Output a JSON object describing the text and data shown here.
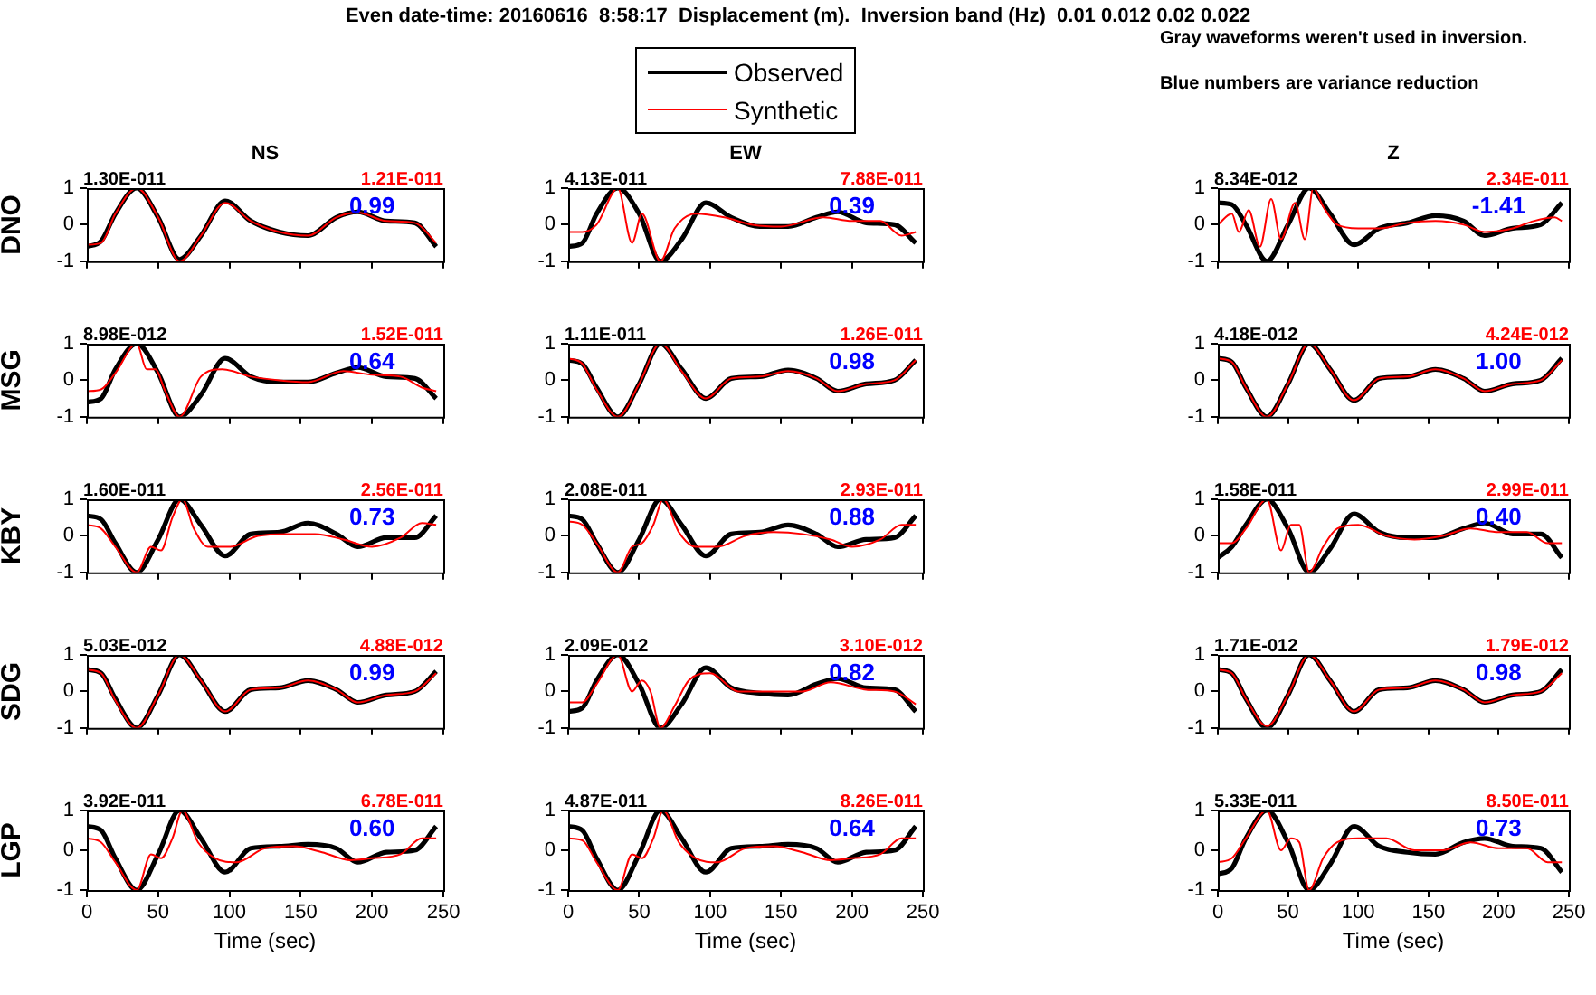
{
  "chart_data": [
    {
      "type": "other",
      "title": "Even date-time: 20160616  8:58:17  Displacement (m).  Inversion band (Hz)  0.01 0.012 0.02 0.022",
      "annotations": [
        "Gray waveforms weren't used in inversion.",
        "Blue numbers are variance reduction"
      ]
    },
    {
      "type": "line",
      "title": "NS",
      "ylabel": "DNO",
      "x": [
        0,
        10,
        20,
        35,
        50,
        65,
        80,
        97,
        115,
        135,
        155,
        175,
        190,
        210,
        230,
        245
      ],
      "xlim": [
        0,
        250
      ],
      "xticks": [
        0,
        50,
        100,
        150,
        200,
        250
      ],
      "ylim": [
        -1,
        1
      ],
      "yticks": [
        -1,
        0,
        1
      ],
      "tick_labels": "y",
      "annotations": [
        "1.30E-011",
        "1.21E-011",
        "0.99"
      ],
      "series": [
        {
          "color": "#000000",
          "values": [
            -0.6,
            -0.45,
            0.3,
            1,
            0.2,
            -0.95,
            -0.3,
            0.65,
            0.1,
            -0.2,
            -0.3,
            0.2,
            0.35,
            0.1,
            0.05,
            -0.6
          ]
        },
        {
          "color": "#ff0000",
          "values": [
            -0.55,
            -0.5,
            0.3,
            1,
            0.2,
            -1,
            -0.3,
            0.6,
            0.1,
            -0.2,
            -0.3,
            0.2,
            0.33,
            0.1,
            0.05,
            -0.5
          ]
        }
      ]
    },
    {
      "type": "line",
      "title": "EW",
      "legend": "top",
      "x": [
        0,
        10,
        20,
        35,
        50,
        65,
        80,
        97,
        115,
        135,
        155,
        175,
        190,
        210,
        230,
        245
      ],
      "xlim": [
        0,
        250
      ],
      "xticks": [
        0,
        50,
        100,
        150,
        200,
        250
      ],
      "ylim": [
        -1,
        1
      ],
      "yticks": [
        -1,
        0,
        1
      ],
      "tick_labels": "y",
      "annotations": [
        "4.13E-011",
        "7.88E-011",
        "0.39"
      ],
      "series": [
        {
          "name": "Observed",
          "color": "#000000",
          "values": [
            -0.6,
            -0.5,
            0.3,
            1,
            0.3,
            -1,
            -0.4,
            0.6,
            0.2,
            -0.05,
            -0.05,
            0.2,
            0.35,
            0.05,
            0,
            -0.5
          ]
        },
        {
          "name": "Synthetic",
          "color": "#ff0000",
          "x": [
            0,
            10,
            20,
            35,
            45,
            52,
            65,
            75,
            90,
            110,
            130,
            150,
            180,
            200,
            220,
            235,
            245
          ],
          "values": [
            -0.2,
            -0.2,
            0,
            1,
            -0.5,
            0.3,
            -1,
            -0.1,
            0.3,
            0.2,
            0,
            -0.05,
            0.2,
            0.1,
            0.1,
            -0.3,
            -0.2
          ]
        }
      ]
    },
    {
      "type": "line",
      "title": "Z",
      "x": [
        0,
        10,
        20,
        35,
        50,
        65,
        80,
        97,
        115,
        135,
        155,
        175,
        190,
        210,
        230,
        245
      ],
      "xlim": [
        0,
        250
      ],
      "xticks": [
        0,
        50,
        100,
        150,
        200,
        250
      ],
      "ylim": [
        -1,
        1
      ],
      "yticks": [
        -1,
        0,
        1
      ],
      "tick_labels": "y",
      "annotations": [
        "8.34E-012",
        "2.34E-011",
        "-1.41"
      ],
      "series": [
        {
          "color": "#000000",
          "values": [
            0.6,
            0.55,
            0,
            -1,
            0,
            1,
            0.3,
            -0.55,
            -0.1,
            0.05,
            0.25,
            0.1,
            -0.3,
            -0.1,
            0,
            0.6
          ]
        },
        {
          "color": "#ff0000",
          "x": [
            0,
            10,
            15,
            22,
            30,
            38,
            45,
            55,
            62,
            68,
            75,
            85,
            100,
            115,
            135,
            155,
            175,
            190,
            210,
            225,
            240,
            245
          ],
          "values": [
            0,
            0.3,
            -0.2,
            0.4,
            -0.6,
            0.7,
            -0.4,
            0.6,
            -0.4,
            1,
            0.5,
            0,
            -0.1,
            -0.1,
            0.05,
            0.1,
            0,
            -0.2,
            -0.1,
            0.1,
            0.2,
            0.1
          ]
        }
      ]
    },
    {
      "type": "line",
      "ylabel": "MSG",
      "x": [
        0,
        10,
        20,
        35,
        50,
        65,
        80,
        97,
        115,
        135,
        155,
        175,
        190,
        210,
        230,
        245
      ],
      "xlim": [
        0,
        250
      ],
      "xticks": [
        0,
        50,
        100,
        150,
        200,
        250
      ],
      "ylim": [
        -1,
        1
      ],
      "yticks": [
        -1,
        0,
        1
      ],
      "tick_labels": "y",
      "annotations": [
        "8.98E-012",
        "1.52E-011",
        "0.64"
      ],
      "series": [
        {
          "color": "#000000",
          "values": [
            -0.6,
            -0.5,
            0.3,
            1,
            0.2,
            -1,
            -0.4,
            0.6,
            0.1,
            -0.05,
            -0.05,
            0.2,
            0.35,
            0.1,
            0.05,
            -0.5
          ]
        },
        {
          "color": "#ff0000",
          "x": [
            0,
            10,
            20,
            35,
            42,
            48,
            55,
            65,
            80,
            95,
            115,
            135,
            155,
            180,
            200,
            220,
            235,
            245
          ],
          "values": [
            -0.3,
            -0.25,
            0.2,
            1,
            0.3,
            0.3,
            -0.3,
            -1,
            0.1,
            0.3,
            0.1,
            0,
            -0.05,
            0.25,
            0.15,
            0.1,
            -0.2,
            -0.3
          ]
        }
      ]
    },
    {
      "type": "line",
      "x": [
        0,
        10,
        20,
        35,
        50,
        65,
        80,
        97,
        115,
        135,
        155,
        175,
        190,
        210,
        230,
        245
      ],
      "xlim": [
        0,
        250
      ],
      "xticks": [
        0,
        50,
        100,
        150,
        200,
        250
      ],
      "ylim": [
        -1,
        1
      ],
      "yticks": [
        -1,
        0,
        1
      ],
      "tick_labels": "y",
      "annotations": [
        "1.11E-011",
        "1.26E-011",
        "0.98"
      ],
      "series": [
        {
          "color": "#000000",
          "values": [
            0.55,
            0.45,
            -0.2,
            -1,
            -0.1,
            1,
            0.3,
            -0.5,
            0.05,
            0.1,
            0.28,
            0.05,
            -0.3,
            -0.1,
            0,
            0.55
          ]
        },
        {
          "color": "#ff0000",
          "values": [
            0.6,
            0.45,
            -0.25,
            -1,
            -0.1,
            1,
            0.25,
            -0.5,
            0.05,
            0.1,
            0.25,
            0.05,
            -0.3,
            -0.1,
            0,
            0.55
          ]
        }
      ]
    },
    {
      "type": "line",
      "x": [
        0,
        10,
        20,
        35,
        50,
        65,
        80,
        97,
        115,
        135,
        155,
        175,
        190,
        210,
        230,
        245
      ],
      "xlim": [
        0,
        250
      ],
      "xticks": [
        0,
        50,
        100,
        150,
        200,
        250
      ],
      "ylim": [
        -1,
        1
      ],
      "yticks": [
        -1,
        0,
        1
      ],
      "tick_labels": "y",
      "annotations": [
        "4.18E-012",
        "4.24E-012",
        "1.00"
      ],
      "series": [
        {
          "color": "#000000",
          "values": [
            0.6,
            0.5,
            -0.2,
            -1,
            -0.1,
            1,
            0.3,
            -0.55,
            0.05,
            0.1,
            0.3,
            0.05,
            -0.3,
            -0.1,
            0,
            0.6
          ]
        },
        {
          "color": "#ff0000",
          "values": [
            0.6,
            0.5,
            -0.2,
            -1,
            -0.1,
            1,
            0.3,
            -0.55,
            0.05,
            0.1,
            0.3,
            0.05,
            -0.3,
            -0.1,
            0,
            0.55
          ]
        }
      ]
    },
    {
      "type": "line",
      "ylabel": "KBY",
      "x": [
        0,
        10,
        20,
        35,
        50,
        65,
        80,
        97,
        115,
        135,
        155,
        175,
        190,
        210,
        230,
        245
      ],
      "xlim": [
        0,
        250
      ],
      "xticks": [
        0,
        50,
        100,
        150,
        200,
        250
      ],
      "ylim": [
        -1,
        1
      ],
      "yticks": [
        -1,
        0,
        1
      ],
      "tick_labels": "y",
      "annotations": [
        "1.60E-011",
        "2.56E-011",
        "0.73"
      ],
      "series": [
        {
          "color": "#000000",
          "values": [
            0.55,
            0.45,
            -0.2,
            -1,
            -0.1,
            1,
            0.3,
            -0.55,
            0.05,
            0.1,
            0.35,
            0.05,
            -0.3,
            -0.05,
            -0.05,
            0.55
          ]
        },
        {
          "color": "#ff0000",
          "x": [
            0,
            10,
            20,
            35,
            45,
            52,
            60,
            67,
            75,
            85,
            100,
            120,
            140,
            160,
            180,
            200,
            220,
            235,
            245
          ],
          "values": [
            0.3,
            0.2,
            -0.3,
            -1,
            -0.3,
            -0.4,
            0.5,
            1,
            0.2,
            -0.3,
            -0.3,
            0,
            0.05,
            0.05,
            -0.1,
            -0.3,
            -0.05,
            0.35,
            0.3
          ]
        }
      ]
    },
    {
      "type": "line",
      "x": [
        0,
        10,
        20,
        35,
        50,
        65,
        80,
        97,
        115,
        135,
        155,
        175,
        190,
        210,
        230,
        245
      ],
      "xlim": [
        0,
        250
      ],
      "xticks": [
        0,
        50,
        100,
        150,
        200,
        250
      ],
      "ylim": [
        -1,
        1
      ],
      "yticks": [
        -1,
        0,
        1
      ],
      "tick_labels": "y",
      "annotations": [
        "2.08E-011",
        "2.93E-011",
        "0.88"
      ],
      "series": [
        {
          "color": "#000000",
          "values": [
            0.55,
            0.45,
            -0.2,
            -1,
            -0.1,
            1,
            0.3,
            -0.55,
            0.05,
            0.1,
            0.3,
            0.05,
            -0.3,
            -0.1,
            -0.05,
            0.55
          ]
        },
        {
          "color": "#ff0000",
          "x": [
            0,
            10,
            20,
            35,
            45,
            52,
            60,
            67,
            78,
            90,
            105,
            125,
            145,
            165,
            185,
            200,
            220,
            235,
            245
          ],
          "values": [
            0.4,
            0.3,
            -0.2,
            -1,
            -0.3,
            -0.2,
            0.3,
            1,
            0.1,
            -0.3,
            -0.3,
            0,
            0.1,
            0.05,
            -0.1,
            -0.3,
            -0.1,
            0.3,
            0.3
          ]
        }
      ]
    },
    {
      "type": "line",
      "x": [
        0,
        10,
        20,
        35,
        50,
        65,
        80,
        97,
        115,
        135,
        155,
        175,
        190,
        210,
        230,
        245
      ],
      "xlim": [
        0,
        250
      ],
      "xticks": [
        0,
        50,
        100,
        150,
        200,
        250
      ],
      "ylim": [
        -1,
        1
      ],
      "yticks": [
        -1,
        0,
        1
      ],
      "tick_labels": "y",
      "annotations": [
        "1.58E-011",
        "2.99E-011",
        "0.40"
      ],
      "series": [
        {
          "color": "#000000",
          "values": [
            -0.6,
            -0.3,
            0.3,
            1,
            0.2,
            -1,
            -0.35,
            0.6,
            0.1,
            -0.05,
            -0.05,
            0.2,
            0.35,
            0.05,
            0.05,
            -0.6
          ]
        },
        {
          "color": "#ff0000",
          "x": [
            0,
            10,
            20,
            35,
            45,
            52,
            58,
            65,
            75,
            85,
            100,
            120,
            140,
            160,
            180,
            200,
            220,
            235,
            245
          ],
          "values": [
            -0.2,
            -0.2,
            0.2,
            1,
            -0.4,
            0.3,
            0.3,
            -1,
            -0.3,
            0.2,
            0.3,
            0,
            -0.1,
            0,
            0.2,
            0.1,
            0.1,
            -0.2,
            -0.2
          ]
        }
      ]
    },
    {
      "type": "line",
      "ylabel": "SDG",
      "x": [
        0,
        10,
        20,
        35,
        50,
        65,
        80,
        97,
        115,
        135,
        155,
        175,
        190,
        210,
        230,
        245
      ],
      "xlim": [
        0,
        250
      ],
      "xticks": [
        0,
        50,
        100,
        150,
        200,
        250
      ],
      "ylim": [
        -1,
        1
      ],
      "yticks": [
        -1,
        0,
        1
      ],
      "tick_labels": "y",
      "annotations": [
        "5.03E-012",
        "4.88E-012",
        "0.99"
      ],
      "series": [
        {
          "color": "#000000",
          "values": [
            0.6,
            0.5,
            -0.2,
            -1,
            -0.1,
            1,
            0.3,
            -0.55,
            0.05,
            0.1,
            0.3,
            0.05,
            -0.3,
            -0.1,
            0,
            0.55
          ]
        },
        {
          "color": "#ff0000",
          "values": [
            0.6,
            0.5,
            -0.25,
            -1,
            -0.1,
            1,
            0.3,
            -0.55,
            0.05,
            0.1,
            0.3,
            0.05,
            -0.3,
            -0.1,
            0,
            0.5
          ]
        }
      ]
    },
    {
      "type": "line",
      "x": [
        0,
        10,
        20,
        35,
        50,
        65,
        80,
        97,
        115,
        135,
        155,
        175,
        190,
        210,
        230,
        245
      ],
      "xlim": [
        0,
        250
      ],
      "xticks": [
        0,
        50,
        100,
        150,
        200,
        250
      ],
      "ylim": [
        -1,
        1
      ],
      "yticks": [
        -1,
        0,
        1
      ],
      "tick_labels": "y",
      "annotations": [
        "2.09E-012",
        "3.10E-012",
        "0.82"
      ],
      "series": [
        {
          "color": "#000000",
          "values": [
            -0.55,
            -0.45,
            0.3,
            1,
            0.2,
            -1,
            -0.35,
            0.65,
            0.1,
            -0.05,
            -0.1,
            0.2,
            0.35,
            0.1,
            0.05,
            -0.55
          ]
        },
        {
          "color": "#ff0000",
          "x": [
            0,
            10,
            20,
            35,
            45,
            52,
            58,
            65,
            75,
            85,
            100,
            120,
            145,
            165,
            185,
            210,
            230,
            245
          ],
          "values": [
            -0.3,
            -0.3,
            0.2,
            1,
            0,
            0.3,
            0,
            -1,
            -0.4,
            0.3,
            0.5,
            0,
            0,
            0,
            0.25,
            0.05,
            0,
            -0.35
          ]
        }
      ]
    },
    {
      "type": "line",
      "x": [
        0,
        10,
        20,
        35,
        50,
        65,
        80,
        97,
        115,
        135,
        155,
        175,
        190,
        210,
        230,
        245
      ],
      "xlim": [
        0,
        250
      ],
      "xticks": [
        0,
        50,
        100,
        150,
        200,
        250
      ],
      "ylim": [
        -1,
        1
      ],
      "yticks": [
        -1,
        0,
        1
      ],
      "tick_labels": "y",
      "annotations": [
        "1.71E-012",
        "1.79E-012",
        "0.98"
      ],
      "series": [
        {
          "color": "#000000",
          "values": [
            0.6,
            0.5,
            -0.2,
            -1,
            -0.1,
            1,
            0.3,
            -0.55,
            0.05,
            0.1,
            0.3,
            0.05,
            -0.3,
            -0.1,
            0,
            0.6
          ]
        },
        {
          "color": "#ff0000",
          "values": [
            0.6,
            0.5,
            -0.2,
            -0.95,
            -0.1,
            1,
            0.3,
            -0.55,
            0.05,
            0.1,
            0.3,
            0.05,
            -0.3,
            -0.1,
            0,
            0.5
          ]
        }
      ]
    },
    {
      "type": "line",
      "ylabel": "LGP",
      "xlabel": "Time (sec)",
      "x": [
        0,
        10,
        20,
        35,
        50,
        65,
        80,
        97,
        115,
        135,
        155,
        175,
        190,
        210,
        230,
        245
      ],
      "xlim": [
        0,
        250
      ],
      "xticks": [
        0,
        50,
        100,
        150,
        200,
        250
      ],
      "ylim": [
        -1,
        1
      ],
      "yticks": [
        -1,
        0,
        1
      ],
      "annotations": [
        "3.92E-011",
        "6.78E-011",
        "0.60"
      ],
      "series": [
        {
          "color": "#000000",
          "values": [
            0.6,
            0.5,
            -0.2,
            -1,
            -0.1,
            1,
            0.3,
            -0.55,
            0.05,
            0.1,
            0.15,
            0.05,
            -0.3,
            -0.05,
            0,
            0.6
          ]
        },
        {
          "color": "#ff0000",
          "x": [
            0,
            10,
            20,
            35,
            45,
            52,
            60,
            67,
            78,
            90,
            105,
            125,
            145,
            165,
            185,
            200,
            220,
            235,
            245
          ],
          "values": [
            0.3,
            0.2,
            -0.3,
            -1,
            -0.1,
            -0.2,
            0.3,
            1,
            0.2,
            -0.2,
            -0.3,
            0.05,
            0.1,
            -0.05,
            -0.25,
            -0.2,
            -0.1,
            0.3,
            0.3
          ]
        }
      ]
    },
    {
      "type": "line",
      "xlabel": "Time (sec)",
      "x": [
        0,
        10,
        20,
        35,
        50,
        65,
        80,
        97,
        115,
        135,
        155,
        175,
        190,
        210,
        230,
        245
      ],
      "xlim": [
        0,
        250
      ],
      "xticks": [
        0,
        50,
        100,
        150,
        200,
        250
      ],
      "ylim": [
        -1,
        1
      ],
      "yticks": [
        -1,
        0,
        1
      ],
      "annotations": [
        "4.87E-011",
        "8.26E-011",
        "0.64"
      ],
      "series": [
        {
          "color": "#000000",
          "values": [
            0.6,
            0.5,
            -0.2,
            -1,
            -0.1,
            1,
            0.3,
            -0.55,
            0.05,
            0.1,
            0.15,
            0.05,
            -0.3,
            -0.05,
            0,
            0.6
          ]
        },
        {
          "color": "#ff0000",
          "x": [
            0,
            10,
            20,
            35,
            45,
            52,
            60,
            67,
            78,
            90,
            105,
            125,
            145,
            165,
            185,
            200,
            220,
            235,
            245
          ],
          "values": [
            0.3,
            0.25,
            -0.3,
            -1,
            -0.1,
            -0.2,
            0.3,
            1,
            0.2,
            -0.2,
            -0.3,
            0.05,
            0.1,
            -0.05,
            -0.25,
            -0.2,
            -0.1,
            0.3,
            0.3
          ]
        }
      ]
    },
    {
      "type": "line",
      "xlabel": "Time (sec)",
      "x": [
        0,
        10,
        20,
        35,
        50,
        65,
        80,
        97,
        115,
        135,
        155,
        175,
        190,
        210,
        230,
        245
      ],
      "xlim": [
        0,
        250
      ],
      "xticks": [
        0,
        50,
        100,
        150,
        200,
        250
      ],
      "ylim": [
        -1,
        1
      ],
      "yticks": [
        -1,
        0,
        1
      ],
      "annotations": [
        "5.33E-011",
        "8.50E-011",
        "0.73"
      ],
      "series": [
        {
          "color": "#000000",
          "values": [
            -0.6,
            -0.45,
            0.3,
            1,
            0.2,
            -1,
            -0.35,
            0.6,
            0.1,
            -0.05,
            -0.1,
            0.2,
            0.3,
            0.1,
            0.05,
            -0.55
          ]
        },
        {
          "color": "#ff0000",
          "x": [
            0,
            10,
            20,
            35,
            45,
            52,
            58,
            65,
            75,
            85,
            100,
            120,
            140,
            160,
            180,
            200,
            220,
            235,
            245
          ],
          "values": [
            -0.3,
            -0.2,
            0.3,
            1,
            0,
            0.3,
            0.2,
            -1,
            -0.2,
            0.2,
            0.3,
            0.3,
            0,
            0,
            0.2,
            0.05,
            0.05,
            -0.3,
            -0.3
          ]
        }
      ]
    }
  ]
}
